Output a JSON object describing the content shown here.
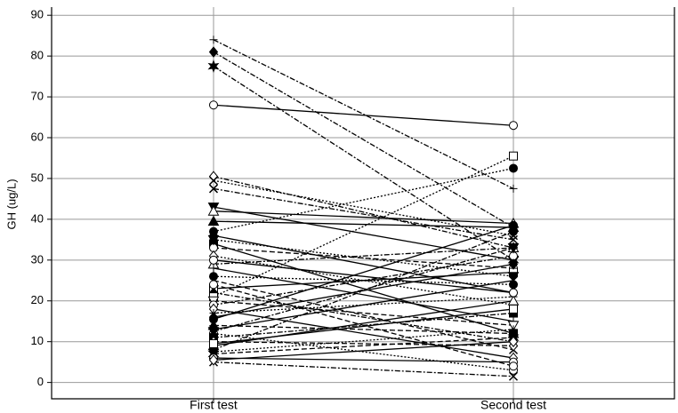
{
  "chart_data": {
    "type": "paired-line",
    "y_label": "GH (ug/L)",
    "categories": [
      "First test",
      "Second test"
    ],
    "ylim": [
      -4,
      92
    ],
    "yticks": [
      0,
      10,
      20,
      30,
      40,
      50,
      60,
      70,
      80,
      90
    ],
    "grid": true,
    "color": "#000000",
    "series": [
      {
        "values": [
          84,
          47.5
        ],
        "marker": "plus",
        "dash": "dashdot"
      },
      {
        "values": [
          81,
          38
        ],
        "marker": "diamond-filled",
        "dash": "dashdot"
      },
      {
        "values": [
          77.5,
          30
        ],
        "marker": "star-filled",
        "dash": "dashdot"
      },
      {
        "values": [
          68,
          63
        ],
        "marker": "circle-open",
        "dash": "solid"
      },
      {
        "values": [
          50.5,
          33
        ],
        "marker": "diamond-open",
        "dash": "dashdot"
      },
      {
        "values": [
          49.5,
          36
        ],
        "marker": "x",
        "dash": "dot"
      },
      {
        "values": [
          47.5,
          35
        ],
        "marker": "x",
        "dash": "dashdot"
      },
      {
        "values": [
          43,
          30
        ],
        "marker": "triangle-down-filled",
        "dash": "solid"
      },
      {
        "values": [
          42,
          39
        ],
        "marker": "triangle-open",
        "dash": "solid"
      },
      {
        "values": [
          39.5,
          38
        ],
        "marker": "triangle-filled",
        "dash": "solid"
      },
      {
        "values": [
          37,
          52.5
        ],
        "marker": "circle-filled",
        "dash": "dot"
      },
      {
        "values": [
          36,
          22
        ],
        "marker": "diamond-filled",
        "dash": "solid"
      },
      {
        "values": [
          34,
          12
        ],
        "marker": "square-filled",
        "dash": "solid"
      },
      {
        "values": [
          33,
          28
        ],
        "marker": "circle-open",
        "dash": "dash"
      },
      {
        "values": [
          31,
          19
        ],
        "marker": "diamond-open",
        "dash": "dot"
      },
      {
        "values": [
          29,
          33
        ],
        "marker": "triangle-open",
        "dash": "dashdot"
      },
      {
        "values": [
          28,
          15
        ],
        "marker": "plus",
        "dash": "solid"
      },
      {
        "values": [
          26,
          24
        ],
        "marker": "circle-filled",
        "dash": "dot"
      },
      {
        "values": [
          25,
          8
        ],
        "marker": "x",
        "dash": "dash"
      },
      {
        "values": [
          23,
          27
        ],
        "marker": "square-open",
        "dash": "solid"
      },
      {
        "values": [
          22,
          10
        ],
        "marker": "diamond-filled",
        "dash": "dashdot"
      },
      {
        "values": [
          21,
          55.5
        ],
        "marker": "square-open",
        "dash": "dot"
      },
      {
        "values": [
          20,
          14
        ],
        "marker": "triangle-down-open",
        "dash": "dash"
      },
      {
        "values": [
          19,
          31
        ],
        "marker": "circle-open",
        "dash": "dashdot"
      },
      {
        "values": [
          18,
          6
        ],
        "marker": "diamond-open",
        "dash": "solid"
      },
      {
        "values": [
          17,
          21
        ],
        "marker": "plus",
        "dash": "dot"
      },
      {
        "values": [
          15.5,
          38.5
        ],
        "marker": "circle-filled",
        "dash": "solid"
      },
      {
        "values": [
          14,
          12
        ],
        "marker": "triangle-filled",
        "dash": "dash"
      },
      {
        "values": [
          13,
          25
        ],
        "marker": "x",
        "dash": "solid"
      },
      {
        "values": [
          12,
          3
        ],
        "marker": "circle-open",
        "dash": "dot"
      },
      {
        "values": [
          11,
          17
        ],
        "marker": "square-filled",
        "dash": "dashdot"
      },
      {
        "values": [
          10,
          9
        ],
        "marker": "diamond-open",
        "dash": "dash"
      },
      {
        "values": [
          9,
          20
        ],
        "marker": "triangle-open",
        "dash": "solid"
      },
      {
        "values": [
          8,
          37
        ],
        "marker": "circle-filled",
        "dash": "dashdot"
      },
      {
        "values": [
          7.5,
          13
        ],
        "marker": "plus",
        "dash": "dot"
      },
      {
        "values": [
          7,
          11
        ],
        "marker": "star-filled",
        "dash": "dash"
      },
      {
        "values": [
          6,
          5
        ],
        "marker": "circle-open",
        "dash": "solid"
      },
      {
        "values": [
          5,
          1.5
        ],
        "marker": "x",
        "dash": "dashdot"
      },
      {
        "values": [
          5.5,
          10
        ],
        "marker": "diamond-open",
        "dash": "solid"
      },
      {
        "values": [
          30,
          22
        ],
        "marker": "circle-open",
        "dash": "solid"
      },
      {
        "values": [
          35,
          26
        ],
        "marker": "triangle-down-filled",
        "dash": "dot"
      },
      {
        "values": [
          24,
          4
        ],
        "marker": "circle-open",
        "dash": "dash"
      },
      {
        "values": [
          16,
          29
        ],
        "marker": "diamond-filled",
        "dash": "solid"
      },
      {
        "values": [
          12.5,
          33
        ],
        "marker": "triangle-down-filled",
        "dash": "dashdot"
      },
      {
        "values": [
          9.5,
          18
        ],
        "marker": "square-open",
        "dash": "solid"
      }
    ]
  }
}
